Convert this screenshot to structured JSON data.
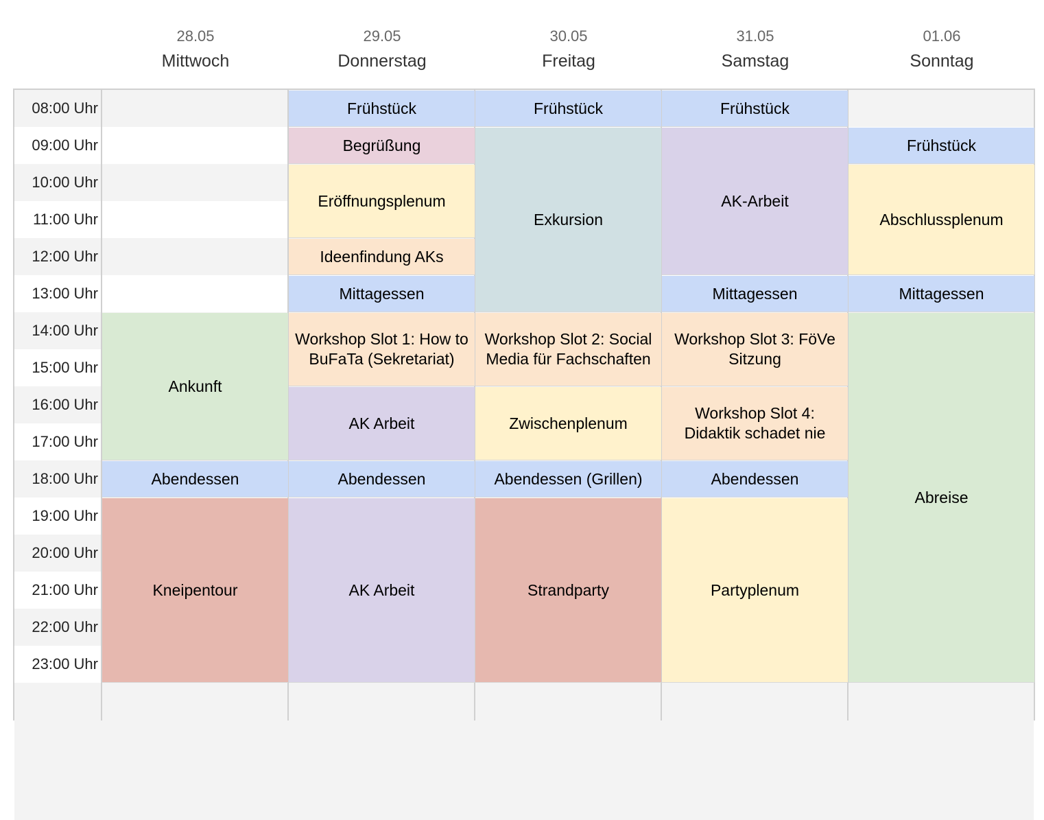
{
  "days": [
    {
      "date": "28.05",
      "name": "Mittwoch"
    },
    {
      "date": "29.05",
      "name": "Donnerstag"
    },
    {
      "date": "30.05",
      "name": "Freitag"
    },
    {
      "date": "31.05",
      "name": "Samstag"
    },
    {
      "date": "01.06",
      "name": "Sonntag"
    }
  ],
  "times": [
    "08:00 Uhr",
    "09:00 Uhr",
    "10:00 Uhr",
    "11:00 Uhr",
    "12:00 Uhr",
    "13:00 Uhr",
    "14:00 Uhr",
    "15:00 Uhr",
    "16:00 Uhr",
    "17:00 Uhr",
    "18:00 Uhr",
    "19:00 Uhr",
    "20:00 Uhr",
    "21:00 Uhr",
    "22:00 Uhr",
    "23:00 Uhr"
  ],
  "colors": {
    "blue": "#c9daf8",
    "pink": "#ead1dc",
    "yellow": "#fff2cc",
    "orange": "#fce5cd",
    "slate": "#d0e0e3",
    "lavender": "#d9d2e9",
    "green": "#d9ead3",
    "red": "#e6b8af"
  },
  "events": [
    {
      "day": 0,
      "start": 14,
      "end": 18,
      "label": "Ankunft",
      "color": "green"
    },
    {
      "day": 0,
      "start": 18,
      "end": 19,
      "label": "Abendessen",
      "color": "blue"
    },
    {
      "day": 0,
      "start": 19,
      "end": 24,
      "label": "Kneipentour",
      "color": "red"
    },
    {
      "day": 1,
      "start": 8,
      "end": 9,
      "label": "Frühstück",
      "color": "blue"
    },
    {
      "day": 1,
      "start": 9,
      "end": 10,
      "label": "Begrüßung",
      "color": "pink"
    },
    {
      "day": 1,
      "start": 10,
      "end": 12,
      "label": "Eröffnungsplenum",
      "color": "yellow"
    },
    {
      "day": 1,
      "start": 12,
      "end": 13,
      "label": "Ideenfindung AKs",
      "color": "orange"
    },
    {
      "day": 1,
      "start": 13,
      "end": 14,
      "label": "Mittagessen",
      "color": "blue"
    },
    {
      "day": 1,
      "start": 14,
      "end": 16,
      "label": "Workshop Slot 1: How to BuFaTa (Sekretariat)",
      "color": "orange"
    },
    {
      "day": 1,
      "start": 16,
      "end": 18,
      "label": "AK Arbeit",
      "color": "lavender"
    },
    {
      "day": 1,
      "start": 18,
      "end": 19,
      "label": "Abendessen",
      "color": "blue"
    },
    {
      "day": 1,
      "start": 19,
      "end": 24,
      "label": "AK Arbeit",
      "color": "lavender"
    },
    {
      "day": 2,
      "start": 8,
      "end": 9,
      "label": "Frühstück",
      "color": "blue"
    },
    {
      "day": 2,
      "start": 9,
      "end": 14,
      "label": "Exkursion",
      "color": "slate"
    },
    {
      "day": 2,
      "start": 14,
      "end": 16,
      "label": "Workshop Slot 2: Social Media für Fachschaften",
      "color": "orange"
    },
    {
      "day": 2,
      "start": 16,
      "end": 18,
      "label": "Zwischenplenum",
      "color": "yellow"
    },
    {
      "day": 2,
      "start": 18,
      "end": 19,
      "label": "Abendessen (Grillen)",
      "color": "blue"
    },
    {
      "day": 2,
      "start": 19,
      "end": 24,
      "label": "Strandparty",
      "color": "red"
    },
    {
      "day": 3,
      "start": 8,
      "end": 9,
      "label": "Frühstück",
      "color": "blue"
    },
    {
      "day": 3,
      "start": 9,
      "end": 13,
      "label": "AK-Arbeit",
      "color": "lavender"
    },
    {
      "day": 3,
      "start": 13,
      "end": 14,
      "label": "Mittagessen",
      "color": "blue"
    },
    {
      "day": 3,
      "start": 14,
      "end": 16,
      "label": "Workshop Slot 3: FöVe Sitzung",
      "color": "orange"
    },
    {
      "day": 3,
      "start": 16,
      "end": 18,
      "label": "Workshop Slot 4: Didaktik schadet nie",
      "color": "orange"
    },
    {
      "day": 3,
      "start": 18,
      "end": 19,
      "label": "Abendessen",
      "color": "blue"
    },
    {
      "day": 3,
      "start": 19,
      "end": 24,
      "label": "Partyplenum",
      "color": "yellow"
    },
    {
      "day": 4,
      "start": 9,
      "end": 10,
      "label": "Frühstück",
      "color": "blue"
    },
    {
      "day": 4,
      "start": 10,
      "end": 13,
      "label": "Abschlussplenum",
      "color": "yellow"
    },
    {
      "day": 4,
      "start": 13,
      "end": 14,
      "label": "Mittagessen",
      "color": "blue"
    },
    {
      "day": 4,
      "start": 14,
      "end": 24,
      "label": "Abreise",
      "color": "green"
    }
  ]
}
